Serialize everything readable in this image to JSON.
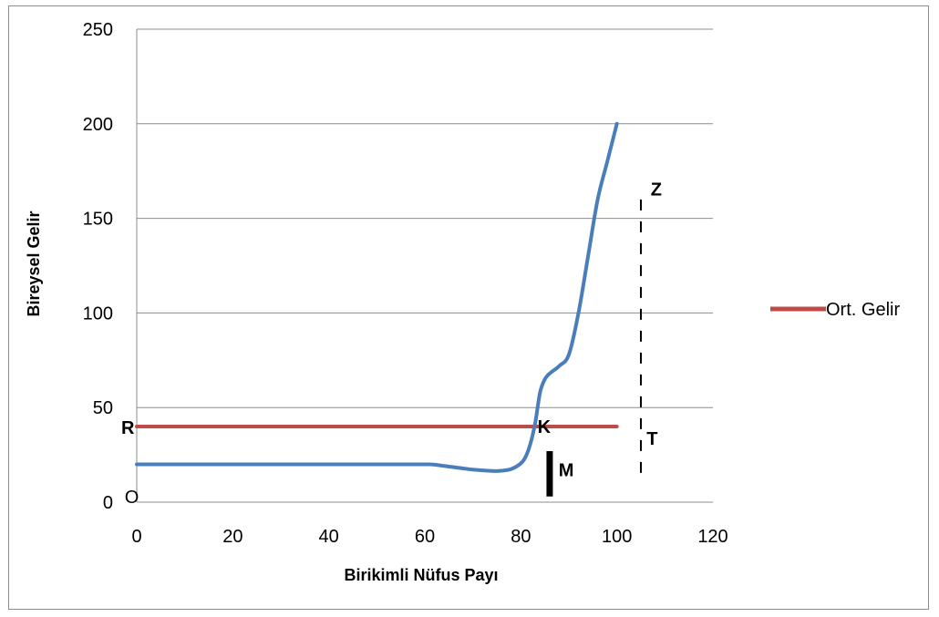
{
  "chart_data": {
    "type": "line",
    "title": "",
    "xlabel": "Birikimli Nüfus Payı",
    "ylabel": "Bireysel Gelir",
    "xlim": [
      0,
      120
    ],
    "ylim": [
      0,
      250
    ],
    "x_ticks": [
      "0",
      "20",
      "40",
      "60",
      "80",
      "100",
      "120"
    ],
    "y_ticks": [
      "0",
      "50",
      "100",
      "150",
      "200",
      "250"
    ],
    "grid": "horizontal",
    "legend_position": "right",
    "series": [
      {
        "name": "",
        "color": "#4a7ebb",
        "x": [
          0,
          10,
          20,
          30,
          40,
          50,
          60,
          62,
          66,
          70,
          74,
          76,
          78,
          80,
          81,
          82,
          83,
          84,
          85,
          86,
          88,
          90,
          92,
          94,
          96,
          98,
          100
        ],
        "y": [
          20,
          20,
          20,
          20,
          20,
          20,
          20,
          19.8,
          18.5,
          17.2,
          16.5,
          16.6,
          17.5,
          20.5,
          24,
          31,
          42,
          58,
          65,
          68,
          72,
          78,
          100,
          130,
          160,
          180,
          200
        ]
      },
      {
        "name": "Ort. Gelir",
        "color": "#be4b48",
        "x": [
          0,
          100
        ],
        "y": [
          40,
          40
        ]
      }
    ],
    "annotations": [
      {
        "text": "R",
        "x": 0,
        "y": 40,
        "bold": true
      },
      {
        "text": "K",
        "x": 85,
        "y": 40,
        "bold": true
      },
      {
        "text": "T",
        "x": 106,
        "y": 38,
        "bold": true
      },
      {
        "text": "Z",
        "x": 108,
        "y": 165,
        "bold": true
      },
      {
        "text": "M",
        "x": 89,
        "y": 18,
        "bold": true
      },
      {
        "text": "O",
        "x": -1,
        "y": 3,
        "bold": false
      }
    ],
    "dashed_line": {
      "x": 105,
      "y_from": 13,
      "y_to": 160,
      "color": "#000000"
    },
    "marker_bar": {
      "x": 86,
      "y_from": 3,
      "y_to": 27,
      "color": "#000000"
    }
  }
}
